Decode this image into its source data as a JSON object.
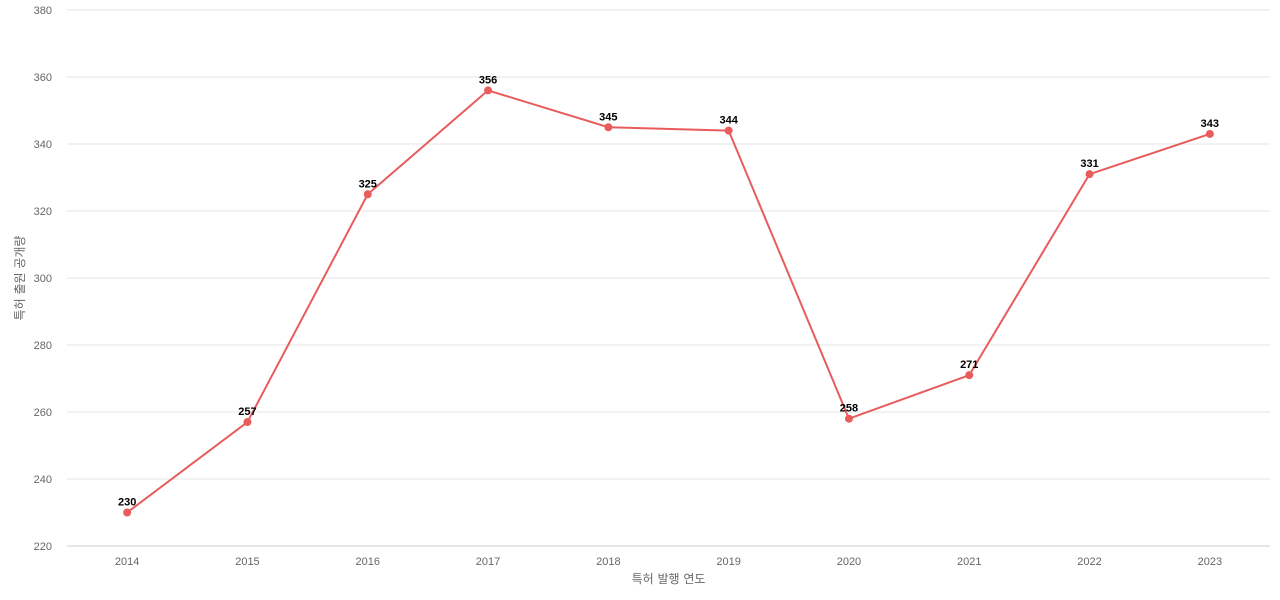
{
  "chart_data": {
    "type": "line",
    "title": "",
    "xlabel": "특허 발행 연도",
    "ylabel": "특허 출원 공개량",
    "categories": [
      "2014",
      "2015",
      "2016",
      "2017",
      "2018",
      "2019",
      "2020",
      "2021",
      "2022",
      "2023"
    ],
    "values": [
      230,
      257,
      325,
      356,
      345,
      344,
      258,
      271,
      331,
      343
    ],
    "ylim": [
      220,
      380
    ],
    "yticks": [
      220,
      240,
      260,
      280,
      300,
      320,
      340,
      360,
      380
    ],
    "grid": true,
    "legend": "none",
    "line_color": "#e85c5c",
    "data_labels": true
  }
}
